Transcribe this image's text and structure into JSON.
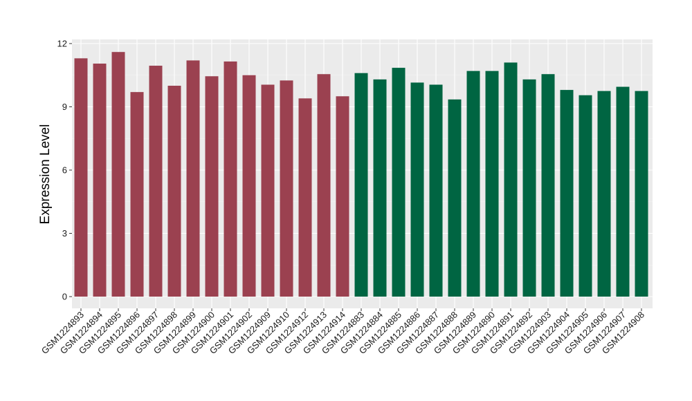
{
  "chart_data": {
    "type": "bar",
    "title": "",
    "xlabel": "",
    "ylabel": "Expression Level",
    "ylim": [
      0,
      12.4
    ],
    "yticks": [
      0,
      3,
      6,
      9,
      12
    ],
    "grid": true,
    "background": "#ebebeb",
    "categories": [
      "GSM1224893",
      "GSM1224894",
      "GSM1224895",
      "GSM1224896",
      "GSM1224897",
      "GSM1224898",
      "GSM1224899",
      "GSM1224900",
      "GSM1224901",
      "GSM1224902",
      "GSM1224909",
      "GSM1224910",
      "GSM1224912",
      "GSM1224913",
      "GSM1224914",
      "GSM1224883",
      "GSM1224884",
      "GSM1224885",
      "GSM1224886",
      "GSM1224887",
      "GSM1224888",
      "GSM1224889",
      "GSM1224890",
      "GSM1224891",
      "GSM1224892",
      "GSM1224903",
      "GSM1224904",
      "GSM1224905",
      "GSM1224906",
      "GSM1224907",
      "GSM1224908"
    ],
    "values": [
      11.3,
      11.05,
      11.6,
      9.7,
      10.95,
      10.0,
      11.2,
      10.45,
      11.15,
      10.5,
      10.05,
      10.25,
      9.4,
      10.55,
      9.5,
      10.6,
      10.3,
      10.85,
      10.15,
      10.05,
      9.35,
      10.7,
      10.7,
      11.1,
      10.3,
      10.55,
      9.8,
      9.55,
      9.75,
      9.95,
      9.75
    ],
    "colors": [
      "#9b4150",
      "#9b4150",
      "#9b4150",
      "#9b4150",
      "#9b4150",
      "#9b4150",
      "#9b4150",
      "#9b4150",
      "#9b4150",
      "#9b4150",
      "#9b4150",
      "#9b4150",
      "#9b4150",
      "#9b4150",
      "#9b4150",
      "#006542",
      "#006542",
      "#006542",
      "#006542",
      "#006542",
      "#006542",
      "#006542",
      "#006542",
      "#006542",
      "#006542",
      "#006542",
      "#006542",
      "#006542",
      "#006542",
      "#006542",
      "#006542"
    ]
  }
}
